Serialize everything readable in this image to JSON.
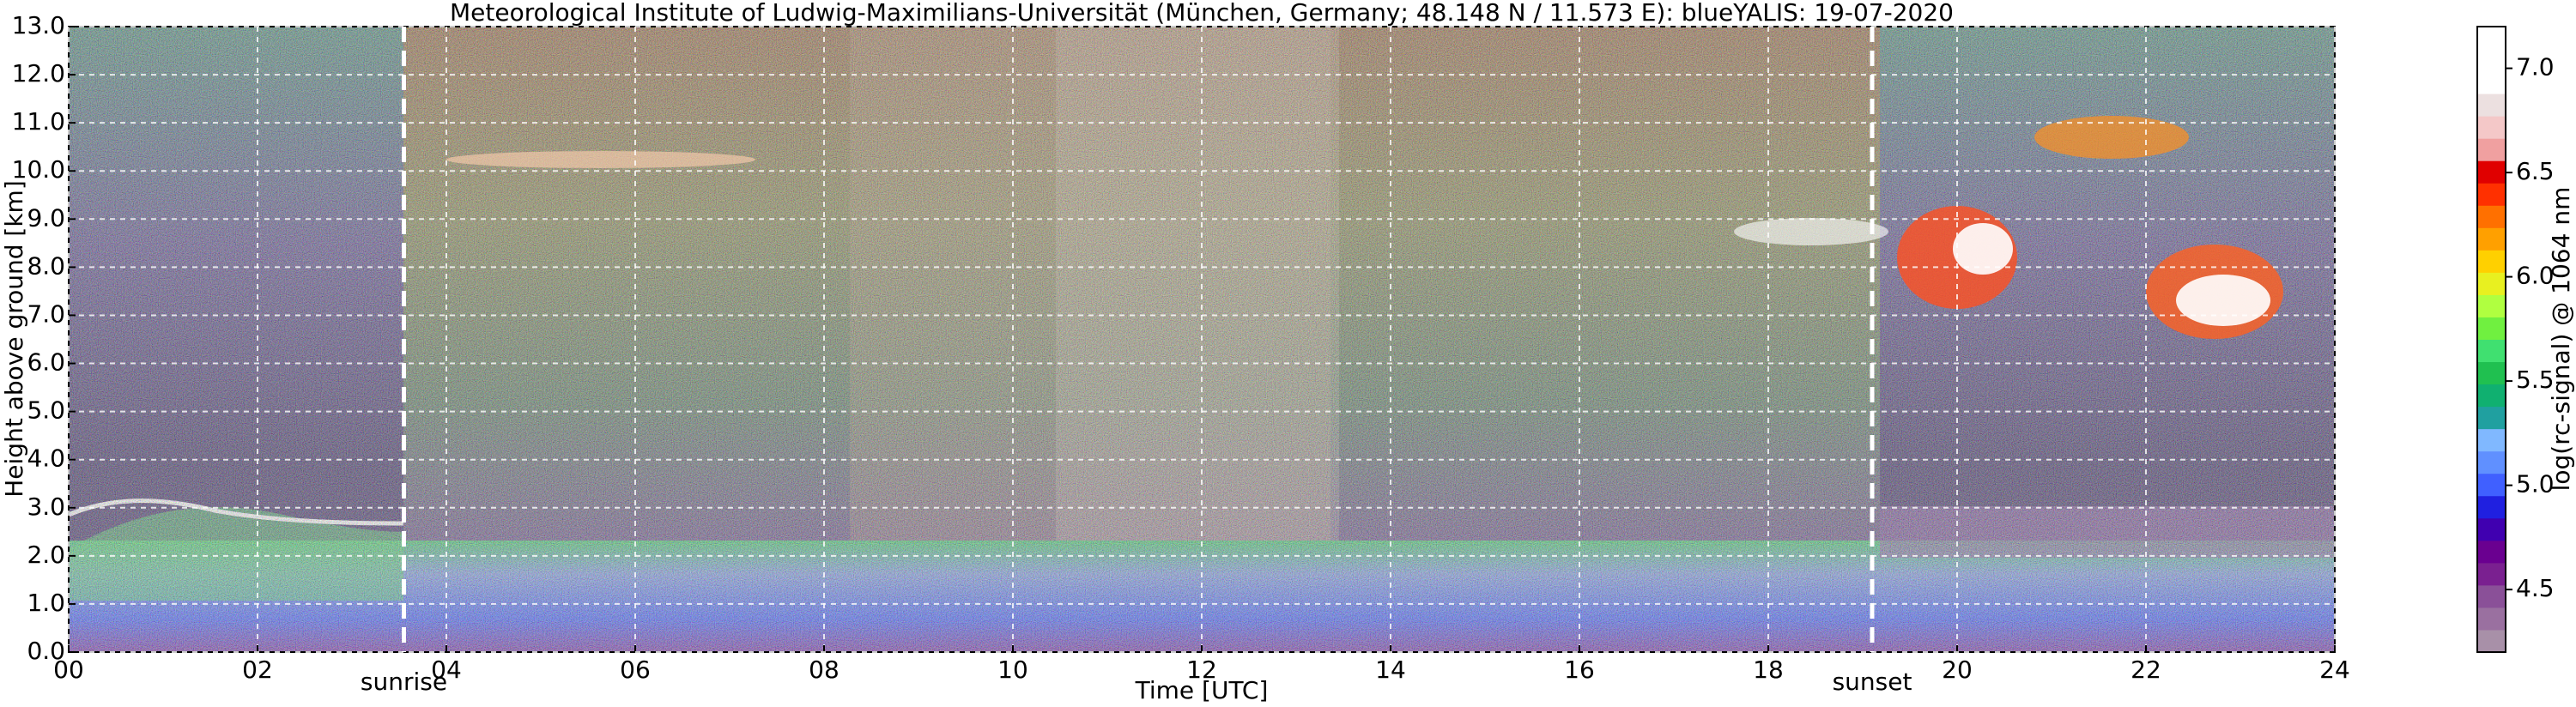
{
  "chart_data": {
    "type": "heatmap",
    "title": "Meteorological Institute of Ludwig-Maximilians-Universität (München, Germany; 48.148 N / 11.573 E):    blueYALIS: 19-07-2020",
    "xlabel": "Time [UTC]",
    "ylabel": "Height above ground [km]",
    "xlim": [
      0,
      24
    ],
    "xticks": [
      {
        "value": 0,
        "label": "00"
      },
      {
        "value": 2,
        "label": "02"
      },
      {
        "value": 4,
        "label": "04"
      },
      {
        "value": 6,
        "label": "06"
      },
      {
        "value": 8,
        "label": "08"
      },
      {
        "value": 10,
        "label": "10"
      },
      {
        "value": 12,
        "label": "12"
      },
      {
        "value": 14,
        "label": "14"
      },
      {
        "value": 16,
        "label": "16"
      },
      {
        "value": 18,
        "label": "18"
      },
      {
        "value": 20,
        "label": "20"
      },
      {
        "value": 22,
        "label": "22"
      },
      {
        "value": 24,
        "label": "24"
      }
    ],
    "ylim": [
      0,
      13
    ],
    "yticks": [
      {
        "value": 0,
        "label": "0.0"
      },
      {
        "value": 1,
        "label": "1.0"
      },
      {
        "value": 2,
        "label": "2.0"
      },
      {
        "value": 3,
        "label": "3.0"
      },
      {
        "value": 4,
        "label": "4.0"
      },
      {
        "value": 5,
        "label": "5.0"
      },
      {
        "value": 6,
        "label": "6.0"
      },
      {
        "value": 7,
        "label": "7.0"
      },
      {
        "value": 8,
        "label": "8.0"
      },
      {
        "value": 9,
        "label": "9.0"
      },
      {
        "value": 10,
        "label": "10.0"
      },
      {
        "value": 11,
        "label": "11.0"
      },
      {
        "value": 12,
        "label": "12.0"
      },
      {
        "value": 13,
        "label": "13.0"
      }
    ],
    "grid": true,
    "annotations": [
      {
        "text": "sunrise",
        "x": 3.55
      },
      {
        "text": "sunset",
        "x": 19.1
      }
    ],
    "colorbar": {
      "label": "log(rc-signal) @ 1064 nm",
      "lim": [
        4.2,
        7.2
      ],
      "ticks": [
        4.5,
        {
          "value": 5,
          "label": "5.0"
        },
        5.5,
        {
          "value": 6,
          "label": "6.0"
        },
        6.5,
        {
          "value": 7,
          "label": "7.0"
        }
      ],
      "colors": [
        "#a890a8",
        "#9a70a0",
        "#8a5098",
        "#7a2090",
        "#6a0090",
        "#4000b0",
        "#2020e0",
        "#4060ff",
        "#6090ff",
        "#80b8ff",
        "#20a0a0",
        "#10b070",
        "#20c050",
        "#40e070",
        "#70f040",
        "#b0ff40",
        "#e8f020",
        "#ffd000",
        "#ffa000",
        "#ff7000",
        "#ff3000",
        "#e00000",
        "#f0a0a0",
        "#f4c8c8",
        "#ece0e0",
        "#ffffff",
        "#ffffff",
        "#ffffff"
      ]
    }
  }
}
